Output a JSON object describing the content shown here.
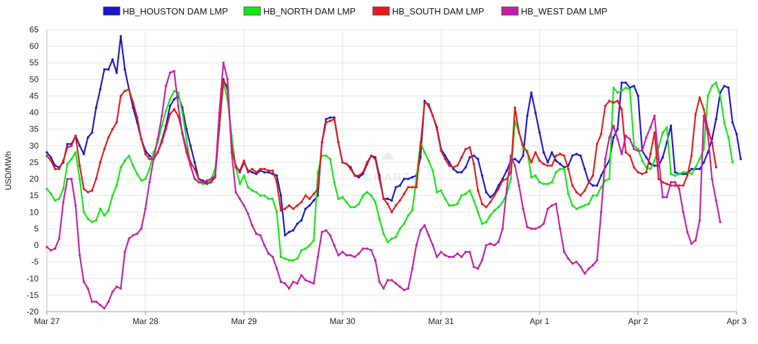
{
  "chart_data": {
    "type": "line",
    "title": "",
    "xlabel": "",
    "ylabel": "USD/MWh",
    "ylim": [
      -20,
      65
    ],
    "y_ticks": [
      -20,
      -15,
      -10,
      -5,
      0,
      5,
      10,
      15,
      20,
      25,
      30,
      35,
      40,
      45,
      50,
      55,
      60,
      65
    ],
    "x_unit": "hours from first tick",
    "x_range": [
      0,
      168
    ],
    "x_ticks": [
      {
        "x": 0,
        "label": "Mar 27"
      },
      {
        "x": 24,
        "label": "Mar 28"
      },
      {
        "x": 48,
        "label": "Mar 29"
      },
      {
        "x": 72,
        "label": "Mar 30"
      },
      {
        "x": 96,
        "label": "Mar 31"
      },
      {
        "x": 120,
        "label": "Apr 1"
      },
      {
        "x": 144,
        "label": "Apr 2"
      },
      {
        "x": 168,
        "label": "Apr 3"
      }
    ],
    "grid": true,
    "legend_position": "top",
    "watermark": "YCHARTS",
    "series": [
      {
        "name": "HB_HOUSTON DAM LMP",
        "color": "#1c17c8",
        "values": [
          28,
          26.5,
          24,
          23.5,
          25,
          30.5,
          30.5,
          33,
          30,
          27.5,
          32.5,
          34,
          41.5,
          47,
          53,
          53,
          56,
          52,
          63,
          53,
          47,
          41.5,
          37,
          32,
          28.5,
          27,
          26,
          28,
          31.5,
          36,
          42,
          44,
          45,
          41.5,
          35,
          30,
          25,
          20,
          19.5,
          19,
          19,
          21,
          36.5,
          50,
          47,
          30,
          24,
          22,
          25,
          22.5,
          22,
          21.5,
          22.5,
          22,
          22,
          21.5,
          21,
          15,
          3,
          4,
          4.5,
          6.5,
          7.5,
          11,
          12,
          13.5,
          15,
          31,
          38,
          38.5,
          38.5,
          31,
          25,
          24.5,
          23.5,
          21,
          20.5,
          21.5,
          24.5,
          27,
          26.5,
          21,
          14,
          14,
          13.5,
          17.5,
          18,
          20,
          20,
          20.5,
          21,
          26.5,
          43.5,
          42,
          39,
          35.5,
          29,
          27,
          25,
          23,
          22,
          22,
          23.5,
          26.5,
          27,
          26,
          21,
          16,
          14.5,
          15.5,
          18,
          20,
          22.5,
          25.5,
          26,
          25,
          27,
          39,
          46,
          40,
          34,
          28,
          25,
          28,
          25.5,
          24.5,
          23.5,
          24,
          27,
          27.5,
          27,
          23,
          19,
          18,
          18,
          21,
          23.5,
          25.5,
          32.5,
          35,
          49,
          49,
          47.5,
          48,
          45,
          28.5,
          26.5,
          24.5,
          24,
          24,
          26.5,
          31,
          36,
          22,
          21.5,
          21.5,
          21.5,
          23,
          23,
          23,
          25,
          28,
          32,
          38,
          46,
          48,
          47.5,
          37,
          33.5,
          26
        ]
      },
      {
        "name": "HB_NORTH DAM LMP",
        "color": "#12e612",
        "values": [
          17,
          15.5,
          13.5,
          14,
          17,
          24.5,
          26,
          28,
          20,
          10,
          8,
          7,
          7.5,
          11,
          9,
          10.5,
          15,
          18,
          23.5,
          25.5,
          27,
          24,
          21.5,
          19.5,
          20,
          23,
          28,
          31,
          36,
          40.5,
          44,
          46.5,
          46,
          40,
          32,
          24,
          20,
          19,
          18.5,
          18.5,
          20,
          23,
          35,
          49,
          44,
          33,
          23.5,
          18.5,
          21,
          17.5,
          16.5,
          16,
          15,
          15,
          14,
          14,
          10,
          -3.5,
          -4,
          -4.5,
          -4.5,
          -4,
          -1.5,
          -1,
          0,
          1.5,
          22,
          27,
          27,
          26,
          19,
          14,
          14.5,
          13,
          11.5,
          11.5,
          12.5,
          15,
          16,
          15,
          13,
          8,
          3.5,
          1,
          2,
          2.5,
          5,
          6.5,
          9,
          10.5,
          20,
          31,
          28,
          25.5,
          22.5,
          16,
          16.5,
          14,
          12,
          12,
          12.5,
          15,
          15.5,
          16.5,
          13.5,
          10,
          6.5,
          7,
          9,
          10.5,
          11.5,
          13,
          15.5,
          20,
          37.5,
          34,
          29,
          28.5,
          20.5,
          21,
          19,
          18.5,
          18.5,
          19,
          22,
          23,
          23,
          15.5,
          12,
          11,
          11.5,
          12,
          12.5,
          15,
          15,
          17.5,
          19.5,
          20,
          47.5,
          46,
          46.5,
          47.5,
          47,
          30,
          29,
          25.5,
          23.5,
          23,
          25.5,
          29.5,
          34,
          35.5,
          21.5,
          21,
          21.5,
          22,
          22,
          21.5,
          23.5,
          26,
          29,
          45,
          48,
          49,
          45,
          37,
          32.5,
          25
        ]
      },
      {
        "name": "HB_SOUTH DAM LMP",
        "color": "#e01c1c",
        "values": [
          27,
          25.5,
          23,
          23,
          25.5,
          29.5,
          30,
          33,
          24,
          17,
          16,
          16.5,
          20,
          25,
          29,
          32.5,
          35,
          37,
          45,
          46.5,
          47,
          43,
          38.5,
          32,
          27.5,
          26,
          26,
          28,
          31,
          35,
          39.5,
          41,
          39,
          34,
          29,
          25,
          23,
          20,
          19,
          18.5,
          19,
          20.5,
          36,
          49.5,
          48,
          30,
          23.5,
          22.5,
          25.5,
          22,
          23,
          22,
          23,
          23,
          22.5,
          22.5,
          19,
          10.5,
          11,
          12,
          11,
          12,
          13,
          15,
          14,
          15.5,
          17,
          31,
          37,
          37.5,
          38,
          31,
          25,
          24.5,
          23,
          21,
          21,
          22,
          25,
          27,
          26,
          20,
          14,
          12.5,
          10,
          12,
          13.5,
          15.5,
          17.5,
          17.5,
          17.5,
          30,
          43,
          42.5,
          39,
          35,
          28.5,
          26,
          24,
          23.5,
          24,
          26.5,
          29,
          29.5,
          24.5,
          16.5,
          12.5,
          11.5,
          13,
          15,
          17,
          19.5,
          20,
          22,
          41.5,
          34,
          30,
          28,
          25,
          28,
          25.5,
          24.5,
          24,
          24,
          27,
          27.5,
          27,
          23,
          18,
          16,
          15,
          16.5,
          19,
          21,
          30.5,
          33.5,
          42,
          43.5,
          43,
          43.5,
          41,
          28,
          27,
          23.5,
          22,
          21.5,
          22,
          27.5,
          34,
          20,
          19,
          18.5,
          18,
          18,
          18,
          18,
          21,
          27,
          39.5,
          44.5,
          41,
          35,
          31,
          23.5
        ]
      },
      {
        "name": "HB_WEST DAM LMP",
        "color": "#c31fa6",
        "values": [
          -0.5,
          -1.5,
          -1,
          2,
          13,
          20,
          20,
          12,
          -3,
          -11,
          -13,
          -17,
          -17,
          -18,
          -19,
          -17,
          -14,
          -12.5,
          -13,
          -2,
          2,
          3,
          3.5,
          5,
          11,
          19,
          26,
          32,
          39,
          48,
          52,
          52.5,
          42,
          33.5,
          28,
          24,
          20,
          19,
          19,
          19.5,
          20,
          21,
          40,
          55,
          50,
          28,
          16,
          14,
          12,
          9.5,
          6,
          3.5,
          3,
          0,
          -2.5,
          -3.5,
          -7,
          -11,
          -11.5,
          -13,
          -11,
          -11.5,
          -9,
          -10.5,
          -11,
          -11.5,
          -3.5,
          4,
          4.5,
          3,
          0,
          -3,
          -2,
          -3,
          -3,
          -3.5,
          -2.5,
          -1,
          -1,
          -1.5,
          -4.5,
          -11,
          -13,
          -10.5,
          -10.5,
          -11.5,
          -12.5,
          -13.5,
          -13,
          -7,
          0,
          4.5,
          6,
          3,
          0,
          -3.5,
          -2,
          -3,
          -3.5,
          -3.5,
          -2.5,
          -3.5,
          -2,
          -2,
          -6.5,
          -7,
          -4.5,
          0,
          0.5,
          0,
          1,
          5,
          17,
          27,
          24,
          18,
          11,
          5.5,
          5,
          5,
          5.5,
          6.5,
          11,
          12,
          12.5,
          5,
          -2,
          -4,
          -5.5,
          -5,
          -6.5,
          -8.5,
          -7,
          -6,
          -4.5,
          10,
          26,
          32.5,
          36,
          32,
          27.5,
          33,
          32,
          29,
          28.5,
          28.5,
          32.5,
          35.5,
          39,
          26,
          14.5,
          14.5,
          19,
          19,
          17,
          10,
          4,
          0.5,
          1.5,
          7.5,
          39,
          33.5,
          20,
          13.5,
          7
        ]
      }
    ]
  }
}
